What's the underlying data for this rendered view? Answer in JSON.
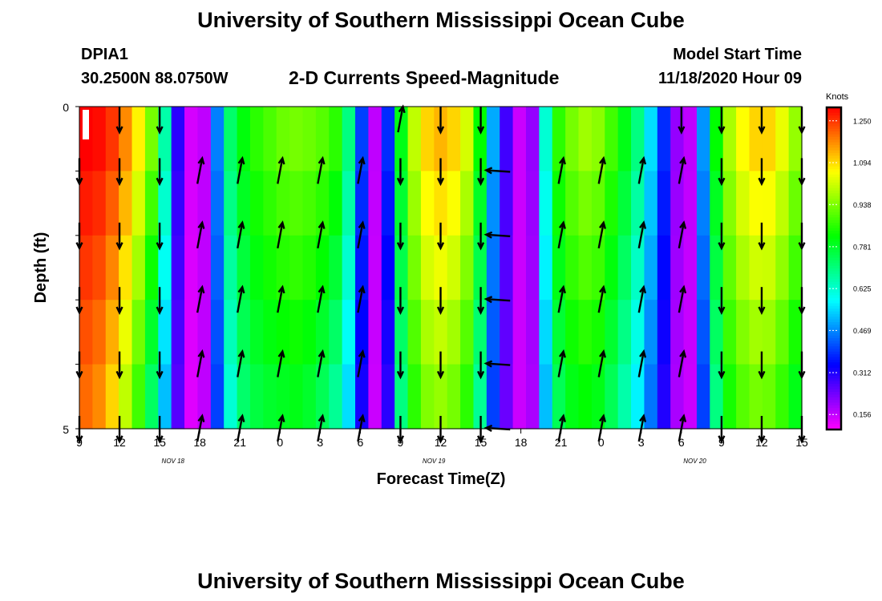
{
  "header": {
    "title": "University of Southern Mississippi Ocean Cube",
    "station_id": "DPIA1",
    "station_coords": "30.2500N 88.0750W",
    "chart_title": "2-D Currents Speed-Magnitude",
    "model_start_label": "Model Start Time",
    "model_start_value": "11/18/2020 Hour 09"
  },
  "footer": {
    "title": "University of Southern Mississippi Ocean Cube"
  },
  "chart_data": {
    "type": "heatmap",
    "title": "2-D Currents Speed-Magnitude",
    "xlabel": "Forecast Time(Z)",
    "ylabel": "Depth (ft)",
    "x_tick_labels": [
      "9",
      "12",
      "15",
      "18",
      "21",
      "0",
      "3",
      "6",
      "9",
      "12",
      "15",
      "18",
      "21",
      "0",
      "3",
      "6",
      "9",
      "12",
      "15"
    ],
    "x_hours": [
      0,
      3,
      6,
      9,
      12,
      15,
      18,
      21,
      24,
      27,
      30,
      33,
      36,
      39,
      42,
      45,
      48,
      51,
      54
    ],
    "date_labels": [
      {
        "label": "NOV 18",
        "hour": 7
      },
      {
        "label": "NOV 19",
        "hour": 26.5
      },
      {
        "label": "NOV 20",
        "hour": 46
      }
    ],
    "y_tick_labels": [
      "0",
      "5"
    ],
    "ylim": [
      0,
      5
    ],
    "depth_levels": [
      0,
      1,
      2,
      3,
      4,
      5
    ],
    "colorbar": {
      "unit": "Knots",
      "min": 0.1,
      "max": 1.3,
      "tick_labels": [
        "1.250",
        "1.094",
        "0.938",
        "0.781",
        "0.625",
        "0.469",
        "0.312",
        "0.156"
      ],
      "tick_values": [
        1.25,
        1.094,
        0.938,
        0.781,
        0.625,
        0.469,
        0.312,
        0.156
      ]
    },
    "speed_series": {
      "hours": [
        0,
        1,
        2,
        3,
        4,
        5,
        6,
        7,
        8,
        9,
        10,
        11,
        12,
        13,
        14,
        15,
        16,
        17,
        18,
        19,
        20,
        21,
        22,
        23,
        24,
        25,
        26,
        27,
        28,
        29,
        30,
        31,
        32,
        33,
        34,
        35,
        36,
        37,
        38,
        39,
        40,
        41,
        42,
        43,
        44,
        45,
        46,
        47,
        48,
        49,
        50,
        51,
        52,
        53,
        54
      ],
      "surface_knots": [
        1.3,
        1.29,
        1.25,
        1.17,
        1.07,
        0.93,
        0.66,
        0.3,
        0.14,
        0.16,
        0.46,
        0.72,
        0.81,
        0.86,
        0.89,
        0.92,
        0.93,
        0.92,
        0.9,
        0.86,
        0.7,
        0.4,
        0.16,
        0.38,
        0.8,
        1.0,
        1.1,
        1.13,
        1.1,
        1.02,
        0.82,
        0.5,
        0.28,
        0.15,
        0.2,
        0.62,
        0.86,
        0.93,
        0.97,
        0.95,
        0.88,
        0.8,
        0.7,
        0.55,
        0.38,
        0.2,
        0.16,
        0.48,
        0.82,
        0.98,
        1.06,
        1.1,
        1.1,
        1.04,
        0.96
      ],
      "bottom_knots": [
        1.2,
        1.17,
        1.1,
        1.0,
        0.88,
        0.73,
        0.52,
        0.26,
        0.13,
        0.16,
        0.4,
        0.62,
        0.72,
        0.76,
        0.78,
        0.79,
        0.8,
        0.78,
        0.74,
        0.68,
        0.55,
        0.32,
        0.15,
        0.3,
        0.7,
        0.86,
        0.94,
        0.96,
        0.93,
        0.86,
        0.68,
        0.4,
        0.24,
        0.15,
        0.18,
        0.52,
        0.74,
        0.8,
        0.82,
        0.8,
        0.74,
        0.66,
        0.57,
        0.45,
        0.31,
        0.18,
        0.15,
        0.4,
        0.7,
        0.84,
        0.9,
        0.93,
        0.92,
        0.87,
        0.8
      ]
    },
    "vectors": {
      "depth_rows": [
        0.2,
        1.0,
        2.0,
        3.0,
        4.0,
        5.0
      ],
      "columns": [
        {
          "hour": 0,
          "dir": [
            0,
            -1,
            -1,
            -1,
            -1,
            -1
          ]
        },
        {
          "hour": 3,
          "dir": [
            -1,
            -1,
            -1,
            -1,
            -1,
            -1
          ]
        },
        {
          "hour": 6,
          "dir": [
            -1,
            -1,
            -1,
            -1,
            -1,
            -1
          ]
        },
        {
          "hour": 9,
          "dir": [
            0,
            1,
            1,
            1,
            1,
            1
          ]
        },
        {
          "hour": 12,
          "dir": [
            0,
            1,
            1,
            1,
            1,
            1
          ]
        },
        {
          "hour": 15,
          "dir": [
            0,
            1,
            1,
            1,
            1,
            1
          ]
        },
        {
          "hour": 18,
          "dir": [
            0,
            1,
            1,
            1,
            1,
            1
          ]
        },
        {
          "hour": 21,
          "dir": [
            0,
            1,
            1,
            1,
            1,
            1
          ]
        },
        {
          "hour": 24,
          "dir": [
            1,
            -1,
            -1,
            -1,
            -1,
            -1
          ]
        },
        {
          "hour": 27,
          "dir": [
            -1,
            -1,
            -1,
            -1,
            -1,
            -1
          ]
        },
        {
          "hour": 30,
          "dir": [
            -1,
            -1,
            -1,
            -1,
            -1,
            -1
          ]
        },
        {
          "hour": 31,
          "dir": [
            0,
            2,
            2,
            2,
            2,
            2
          ]
        },
        {
          "hour": 36,
          "dir": [
            0,
            1,
            1,
            1,
            1,
            1
          ]
        },
        {
          "hour": 39,
          "dir": [
            0,
            1,
            1,
            1,
            1,
            1
          ]
        },
        {
          "hour": 42,
          "dir": [
            0,
            1,
            1,
            1,
            1,
            1
          ]
        },
        {
          "hour": 45,
          "dir": [
            -1,
            1,
            1,
            1,
            1,
            1
          ]
        },
        {
          "hour": 48,
          "dir": [
            -1,
            -1,
            -1,
            -1,
            -1,
            -1
          ]
        },
        {
          "hour": 51,
          "dir": [
            -1,
            -1,
            -1,
            -1,
            -1,
            -1
          ]
        },
        {
          "hour": 54,
          "dir": [
            -1,
            -1,
            -1,
            -1,
            -1,
            -1
          ]
        }
      ]
    }
  }
}
